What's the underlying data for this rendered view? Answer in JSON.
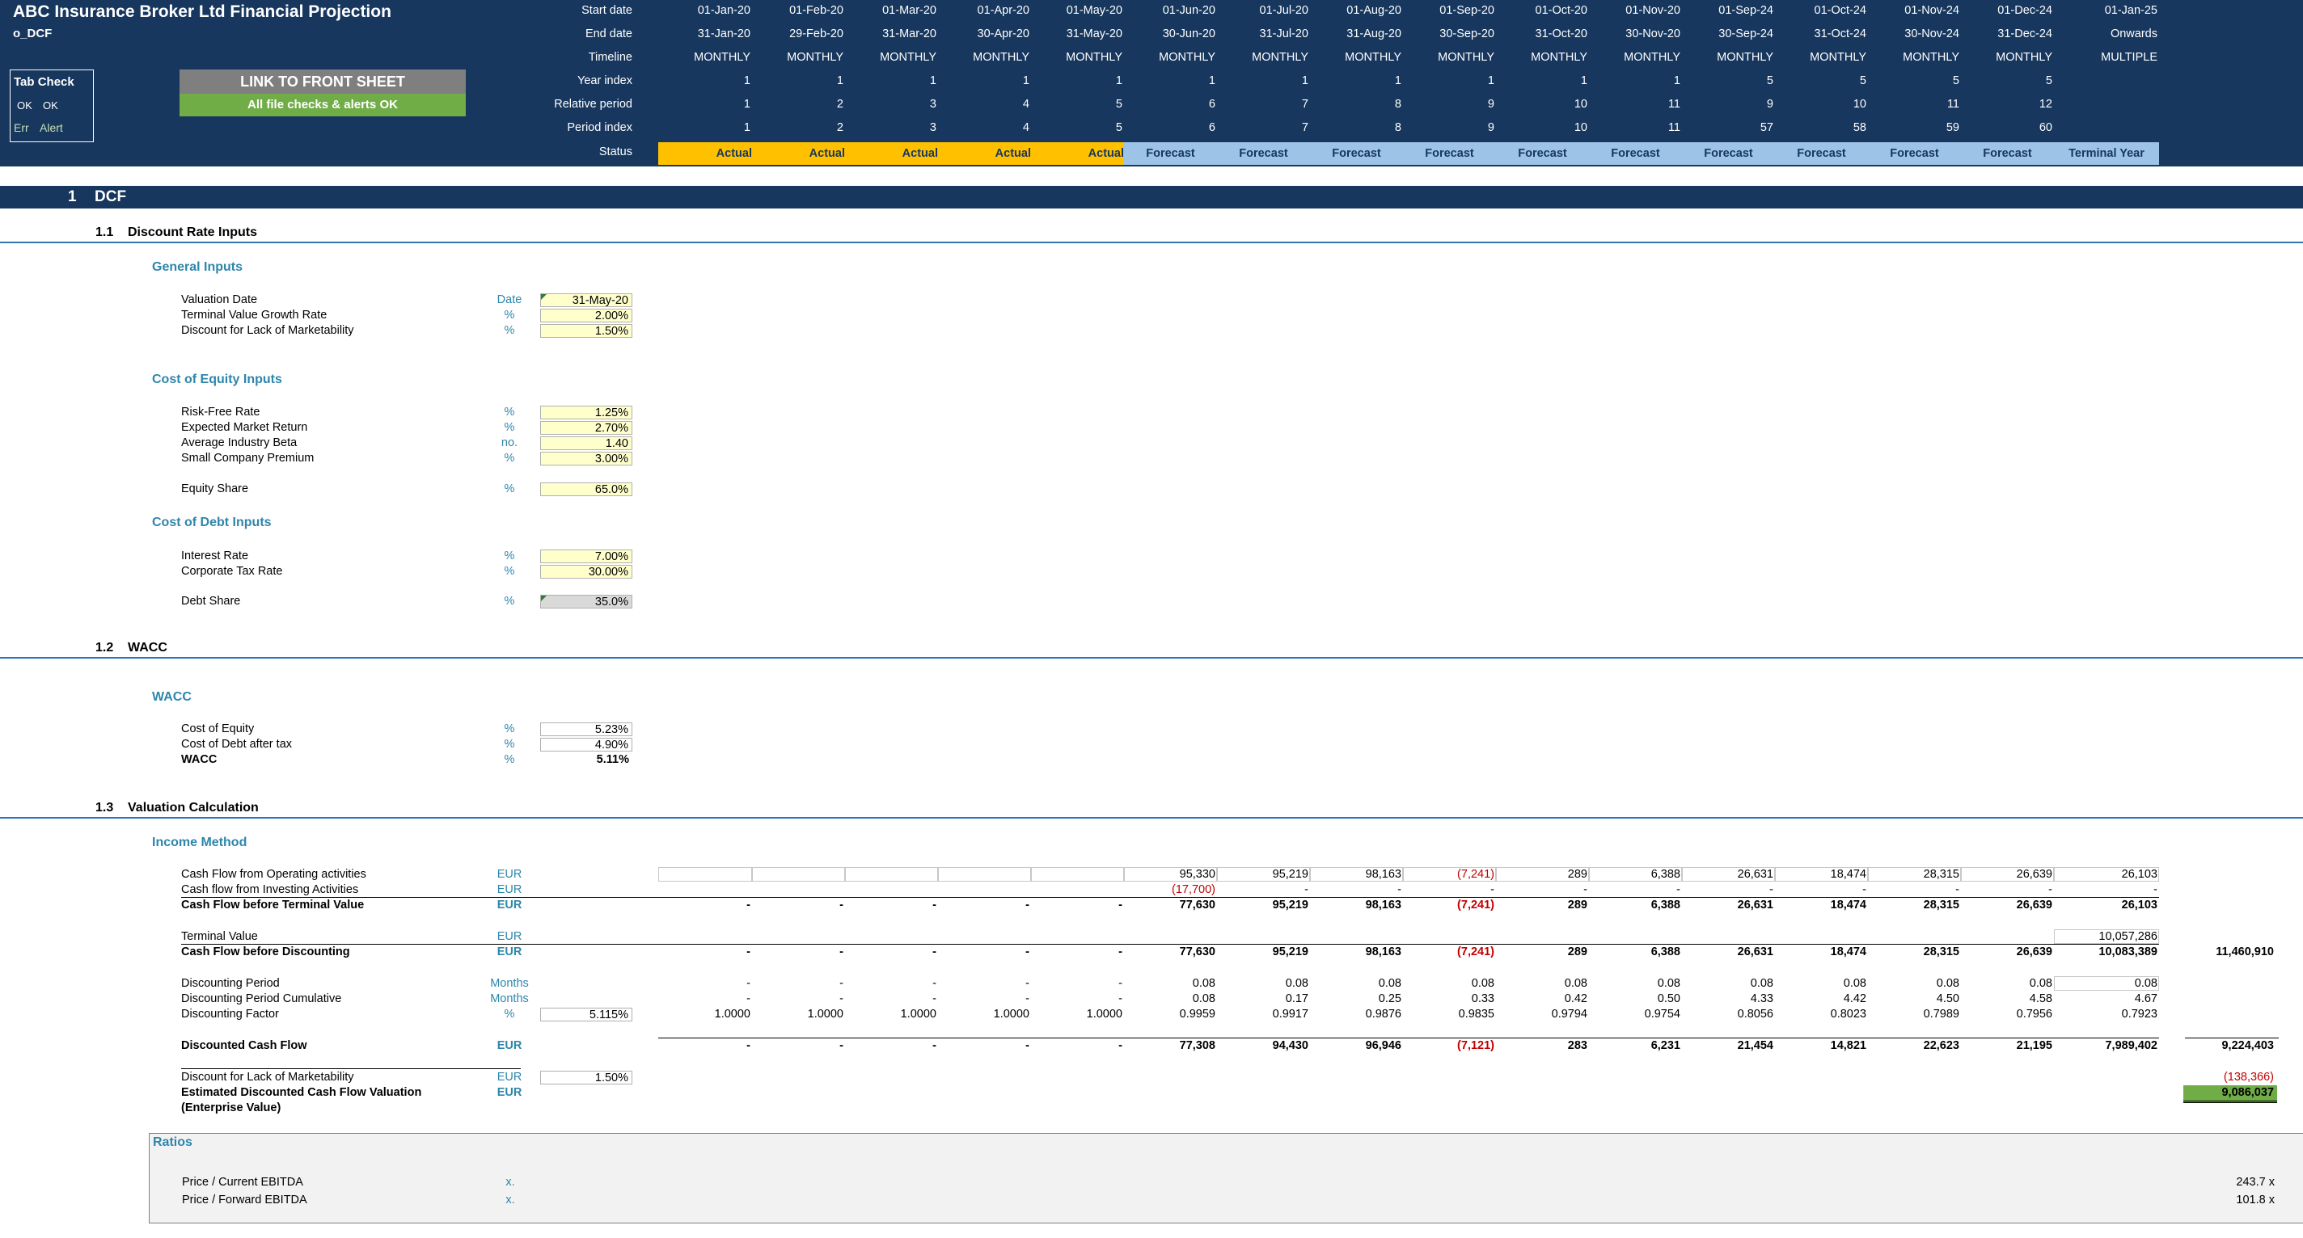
{
  "header": {
    "title": "ABC Insurance Broker Ltd Financial Projection",
    "sheet": "o_DCF",
    "row_labels": [
      "Start date",
      "End date",
      "Timeline",
      "Year index",
      "Relative period",
      "Period index",
      "Status"
    ],
    "columns": [
      {
        "start": "01-Jan-20",
        "end": "31-Jan-20",
        "timeline": "MONTHLY",
        "year": "1",
        "rel": "1",
        "pidx": "1",
        "status": "Actual"
      },
      {
        "start": "01-Feb-20",
        "end": "29-Feb-20",
        "timeline": "MONTHLY",
        "year": "1",
        "rel": "2",
        "pidx": "2",
        "status": "Actual"
      },
      {
        "start": "01-Mar-20",
        "end": "31-Mar-20",
        "timeline": "MONTHLY",
        "year": "1",
        "rel": "3",
        "pidx": "3",
        "status": "Actual"
      },
      {
        "start": "01-Apr-20",
        "end": "30-Apr-20",
        "timeline": "MONTHLY",
        "year": "1",
        "rel": "4",
        "pidx": "4",
        "status": "Actual"
      },
      {
        "start": "01-May-20",
        "end": "31-May-20",
        "timeline": "MONTHLY",
        "year": "1",
        "rel": "5",
        "pidx": "5",
        "status": "Actual"
      },
      {
        "start": "01-Jun-20",
        "end": "30-Jun-20",
        "timeline": "MONTHLY",
        "year": "1",
        "rel": "6",
        "pidx": "6",
        "status": "Forecast"
      },
      {
        "start": "01-Jul-20",
        "end": "31-Jul-20",
        "timeline": "MONTHLY",
        "year": "1",
        "rel": "7",
        "pidx": "7",
        "status": "Forecast"
      },
      {
        "start": "01-Aug-20",
        "end": "31-Aug-20",
        "timeline": "MONTHLY",
        "year": "1",
        "rel": "8",
        "pidx": "8",
        "status": "Forecast"
      },
      {
        "start": "01-Sep-20",
        "end": "30-Sep-20",
        "timeline": "MONTHLY",
        "year": "1",
        "rel": "9",
        "pidx": "9",
        "status": "Forecast"
      },
      {
        "start": "01-Oct-20",
        "end": "31-Oct-20",
        "timeline": "MONTHLY",
        "year": "1",
        "rel": "10",
        "pidx": "10",
        "status": "Forecast"
      },
      {
        "start": "01-Nov-20",
        "end": "30-Nov-20",
        "timeline": "MONTHLY",
        "year": "1",
        "rel": "11",
        "pidx": "11",
        "status": "Forecast"
      },
      {
        "start": "01-Sep-24",
        "end": "30-Sep-24",
        "timeline": "MONTHLY",
        "year": "5",
        "rel": "9",
        "pidx": "57",
        "status": "Forecast"
      },
      {
        "start": "01-Oct-24",
        "end": "31-Oct-24",
        "timeline": "MONTHLY",
        "year": "5",
        "rel": "10",
        "pidx": "58",
        "status": "Forecast"
      },
      {
        "start": "01-Nov-24",
        "end": "30-Nov-24",
        "timeline": "MONTHLY",
        "year": "5",
        "rel": "11",
        "pidx": "59",
        "status": "Forecast"
      },
      {
        "start": "01-Dec-24",
        "end": "31-Dec-24",
        "timeline": "MONTHLY",
        "year": "5",
        "rel": "12",
        "pidx": "60",
        "status": "Forecast"
      },
      {
        "start": "01-Jan-25",
        "end": "Onwards",
        "timeline": "MULTIPLE",
        "year": "",
        "rel": "",
        "pidx": "",
        "status": "Terminal Year"
      }
    ]
  },
  "tab_check": {
    "title": "Tab Check",
    "ok1": "OK",
    "ok2": "OK",
    "err": "Err",
    "alert": "Alert"
  },
  "buttons": {
    "link": "LINK TO FRONT SHEET",
    "checks": "All file checks & alerts OK"
  },
  "section": {
    "num": "1",
    "title": "DCF"
  },
  "subsections": {
    "s11": {
      "num": "1.1",
      "title": "Discount Rate Inputs"
    },
    "s12": {
      "num": "1.2",
      "title": "WACC"
    },
    "s13": {
      "num": "1.3",
      "title": "Valuation Calculation"
    }
  },
  "general_inputs": {
    "title": "General Inputs",
    "rows": [
      {
        "label": "Valuation Date",
        "unit": "Date",
        "value": "31-May-20"
      },
      {
        "label": "Terminal Value Growth Rate",
        "unit": "%",
        "value": "2.00%"
      },
      {
        "label": "Discount for Lack of Marketability",
        "unit": "%",
        "value": "1.50%"
      }
    ]
  },
  "cost_of_equity": {
    "title": "Cost of Equity Inputs",
    "rows": [
      {
        "label": "Risk-Free Rate",
        "unit": "%",
        "value": "1.25%"
      },
      {
        "label": "Expected Market Return",
        "unit": "%",
        "value": "2.70%"
      },
      {
        "label": "Average Industry Beta",
        "unit": "no.",
        "value": "1.40"
      },
      {
        "label": "Small Company Premium",
        "unit": "%",
        "value": "3.00%"
      }
    ],
    "equity_share": {
      "label": "Equity Share",
      "unit": "%",
      "value": "65.0%"
    }
  },
  "cost_of_debt": {
    "title": "Cost of Debt Inputs",
    "rows": [
      {
        "label": "Interest Rate",
        "unit": "%",
        "value": "7.00%"
      },
      {
        "label": "Corporate Tax Rate",
        "unit": "%",
        "value": "30.00%"
      }
    ],
    "debt_share": {
      "label": "Debt Share",
      "unit": "%",
      "value": "35.0%"
    }
  },
  "wacc": {
    "title": "WACC",
    "rows": [
      {
        "label": "Cost of Equity",
        "unit": "%",
        "value": "5.23%"
      },
      {
        "label": "Cost of Debt after tax",
        "unit": "%",
        "value": "4.90%"
      },
      {
        "label": "WACC",
        "unit": "%",
        "value": "5.11%"
      }
    ]
  },
  "income": {
    "title": "Income Method",
    "cfo": {
      "label": "Cash Flow from Operating activities",
      "unit": "EUR",
      "values": [
        "",
        "",
        "",
        "",
        "",
        "95,330",
        "95,219",
        "98,163",
        "(7,241)",
        "289",
        "6,388",
        "26,631",
        "18,474",
        "28,315",
        "26,639",
        "26,103"
      ]
    },
    "cfi": {
      "label": "Cash flow from Investing Activities",
      "unit": "EUR",
      "values": [
        "",
        "",
        "",
        "",
        "",
        "(17,700)",
        "-",
        "-",
        "-",
        "-",
        "-",
        "-",
        "-",
        "-",
        "-",
        "-"
      ]
    },
    "cfbtv": {
      "label": "Cash Flow before Terminal Value",
      "unit": "EUR",
      "values": [
        "-",
        "-",
        "-",
        "-",
        "-",
        "77,630",
        "95,219",
        "98,163",
        "(7,241)",
        "289",
        "6,388",
        "26,631",
        "18,474",
        "28,315",
        "26,639",
        "26,103"
      ]
    },
    "tv": {
      "label": "Terminal Value",
      "unit": "EUR",
      "values": [
        "",
        "",
        "",
        "",
        "",
        "",
        "",
        "",
        "",
        "",
        "",
        "",
        "",
        "",
        "",
        "10,057,286"
      ]
    },
    "cfbd": {
      "label": "Cash Flow before Discounting",
      "unit": "EUR",
      "values": [
        "-",
        "-",
        "-",
        "-",
        "-",
        "77,630",
        "95,219",
        "98,163",
        "(7,241)",
        "289",
        "6,388",
        "26,631",
        "18,474",
        "28,315",
        "26,639",
        "10,083,389"
      ],
      "total": "11,460,910"
    },
    "dp": {
      "label": "Discounting Period",
      "unit": "Months",
      "values": [
        "-",
        "-",
        "-",
        "-",
        "-",
        "0.08",
        "0.08",
        "0.08",
        "0.08",
        "0.08",
        "0.08",
        "0.08",
        "0.08",
        "0.08",
        "0.08",
        "0.08"
      ]
    },
    "dpc": {
      "label": "Discounting Period Cumulative",
      "unit": "Months",
      "values": [
        "-",
        "-",
        "-",
        "-",
        "-",
        "0.08",
        "0.17",
        "0.25",
        "0.33",
        "0.42",
        "0.50",
        "4.33",
        "4.42",
        "4.50",
        "4.58",
        "4.67"
      ]
    },
    "df": {
      "label": "Discounting Factor",
      "unit": "%",
      "input": "5.115%",
      "values": [
        "1.0000",
        "1.0000",
        "1.0000",
        "1.0000",
        "1.0000",
        "0.9959",
        "0.9917",
        "0.9876",
        "0.9835",
        "0.9794",
        "0.9754",
        "0.8056",
        "0.8023",
        "0.7989",
        "0.7956",
        "0.7923"
      ]
    },
    "dcf": {
      "label": "Discounted Cash Flow",
      "unit": "EUR",
      "values": [
        "-",
        "-",
        "-",
        "-",
        "-",
        "77,308",
        "94,430",
        "96,946",
        "(7,121)",
        "283",
        "6,231",
        "21,454",
        "14,821",
        "22,623",
        "21,195",
        "7,989,402"
      ],
      "total": "9,224,403"
    },
    "dlom": {
      "label": "Discount for Lack of Marketability",
      "unit": "EUR",
      "input": "1.50%",
      "total": "(138,366)"
    },
    "edcf": {
      "label": "Estimated Discounted Cash Flow Valuation",
      "label2": "(Enterprise Value)",
      "unit": "EUR",
      "total": "9,086,037"
    }
  },
  "ratios": {
    "title": "Ratios",
    "rows": [
      {
        "label": "Price / Current EBITDA",
        "unit": "x.",
        "value": "243.7 x"
      },
      {
        "label": "Price / Forward EBITDA",
        "unit": "x.",
        "value": "101.8 x"
      }
    ]
  }
}
